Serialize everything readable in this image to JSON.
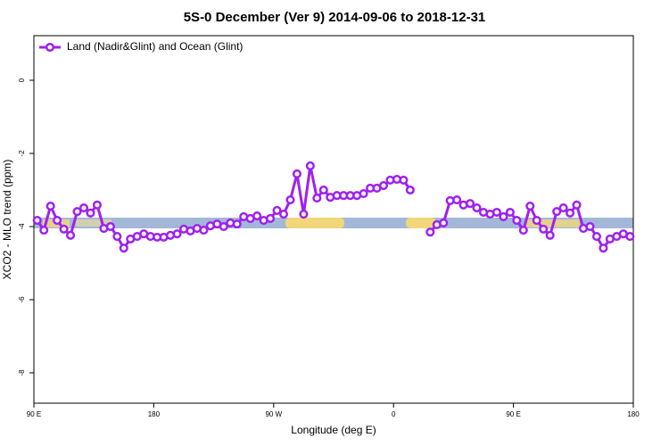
{
  "chart_data": {
    "type": "line",
    "title": "5S-0 December (Ver 9)   2014-09-06 to 2018-12-31",
    "xlabel": "Longitude (deg E)",
    "ylabel": "XCO2 - MLO trend (ppm)",
    "legend": "top-left",
    "xlim": [
      90,
      540
    ],
    "xticks": [
      {
        "value": 90,
        "label": "90 E"
      },
      {
        "value": 180,
        "label": "180"
      },
      {
        "value": 270,
        "label": "90 W"
      },
      {
        "value": 360,
        "label": "0"
      },
      {
        "value": 450,
        "label": "90 E"
      },
      {
        "value": 540,
        "label": "180"
      }
    ],
    "ylim": [
      -8.83,
      1.22
    ],
    "yticks": [
      0,
      -2,
      -4,
      -6,
      -8
    ],
    "x": [
      92.5,
      97.5,
      102.5,
      107.5,
      112.5,
      117.5,
      122.5,
      127.5,
      132.5,
      137.5,
      142.5,
      147.5,
      152.5,
      157.5,
      162.5,
      167.5,
      172.5,
      177.5,
      182.5,
      187.5,
      192.5,
      197.5,
      202.5,
      207.5,
      212.5,
      217.5,
      222.5,
      227.5,
      232.5,
      237.5,
      242.5,
      247.5,
      252.5,
      257.5,
      262.5,
      267.5,
      272.5,
      277.5,
      282.5,
      287.5,
      292.5,
      297.5,
      302.5,
      307.5,
      312.5,
      317.5,
      322.5,
      327.5,
      332.5,
      337.5,
      342.5,
      347.5,
      352.5,
      357.5,
      362.5,
      367.5,
      372.5,
      377.5,
      382.5,
      387.5,
      392.5,
      397.5,
      402.5,
      407.5,
      412.5,
      417.5,
      422.5,
      427.5,
      432.5,
      437.5,
      442.5,
      447.5,
      452.5,
      457.5,
      462.5,
      467.5,
      472.5,
      477.5,
      482.5,
      487.5,
      492.5,
      497.5,
      502.5,
      507.5,
      512.5,
      517.5,
      522.5,
      527.5,
      532.5,
      537.5
    ],
    "series": [
      {
        "name": "Land (Nadir&Glint) and Ocean (Glint)",
        "color": "#a020f0",
        "values": [
          -3.83,
          -4.1,
          -3.44,
          -3.83,
          -4.07,
          -4.24,
          -3.59,
          -3.49,
          -3.63,
          -3.41,
          -4.05,
          -4.0,
          -4.27,
          -4.59,
          -4.34,
          -4.27,
          -4.2,
          -4.27,
          -4.29,
          -4.29,
          -4.24,
          -4.2,
          -4.07,
          -4.12,
          -4.05,
          -4.1,
          -3.98,
          -3.93,
          -4.0,
          -3.9,
          -3.93,
          -3.73,
          -3.78,
          -3.71,
          -3.83,
          -3.78,
          -3.56,
          -3.66,
          -3.27,
          -2.56,
          -3.66,
          -2.34,
          -3.22,
          -3.0,
          -3.2,
          -3.15,
          -3.15,
          -3.15,
          -3.15,
          -3.1,
          -2.95,
          -2.95,
          -2.88,
          -2.73,
          -2.71,
          -2.73,
          -3.0,
          null,
          null,
          -4.15,
          -3.95,
          -3.9,
          -3.29,
          -3.27,
          -3.41,
          -3.37,
          -3.49,
          -3.61,
          -3.66,
          -3.61,
          -3.73,
          -3.61,
          -3.83,
          -4.1,
          -3.44,
          -3.83,
          -4.07,
          -4.24,
          -3.59,
          -3.49,
          -3.63,
          -3.41,
          -4.05,
          -4.0,
          -4.27,
          -4.59,
          -4.34,
          -4.27,
          -4.2,
          -4.27
        ]
      }
    ]
  }
}
